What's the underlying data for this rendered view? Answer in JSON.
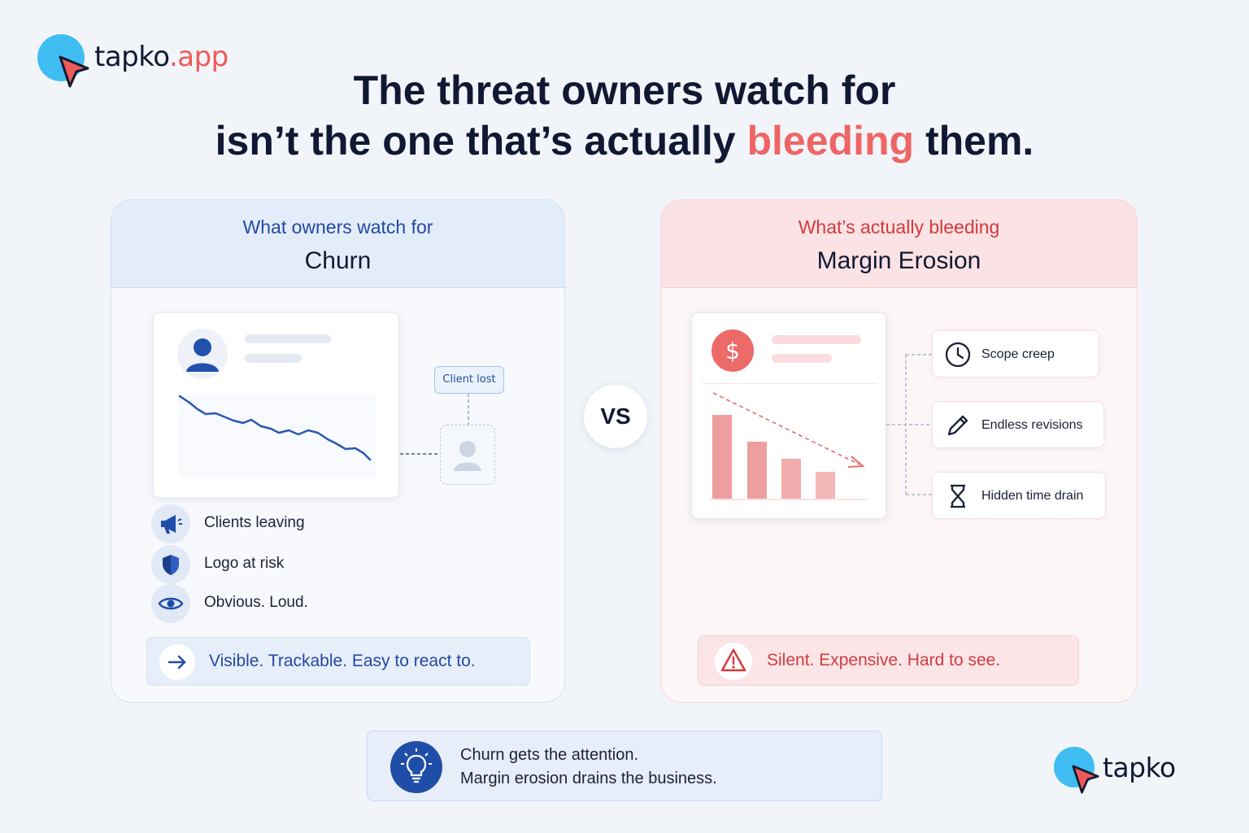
{
  "brand": {
    "top_logo_name": "tapko",
    "top_logo_tld": ".app",
    "bottom_logo_name": "tapko",
    "dot_color": "#3fbdf2",
    "accent_color": "#ee5a58"
  },
  "headline": {
    "line1": "The threat owners watch for",
    "line2_before": "isn’t the one that’s actually ",
    "line2_accent": "bleeding",
    "line2_after": " them."
  },
  "left_panel": {
    "subtitle": "What owners watch for",
    "title": "Churn",
    "tag": "Client lost",
    "features": [
      {
        "icon": "megaphone-icon",
        "label": "Clients leaving"
      },
      {
        "icon": "shield-icon",
        "label": "Logo at risk"
      },
      {
        "icon": "eye-icon",
        "label": "Obvious. Loud."
      }
    ],
    "footer_icon": "arrow-right-icon",
    "footer": "Visible. Trackable. Easy to react to.",
    "accent_color": "#2348a3"
  },
  "vs_label": "VS",
  "right_panel": {
    "subtitle": "What’s actually bleeding",
    "title": "Margin Erosion",
    "chips": [
      {
        "icon": "clock-icon",
        "label": "Scope creep"
      },
      {
        "icon": "pencil-icon",
        "label": "Endless revisions"
      },
      {
        "icon": "hourglass-icon",
        "label": "Hidden time drain"
      }
    ],
    "footer_icon": "warning-icon",
    "footer": "Silent. Expensive. Hard to see.",
    "accent_color": "#d23c3f"
  },
  "insight": {
    "icon": "lightbulb-icon",
    "line1": "Churn gets the attention.",
    "line2": "Margin erosion drains the business."
  }
}
